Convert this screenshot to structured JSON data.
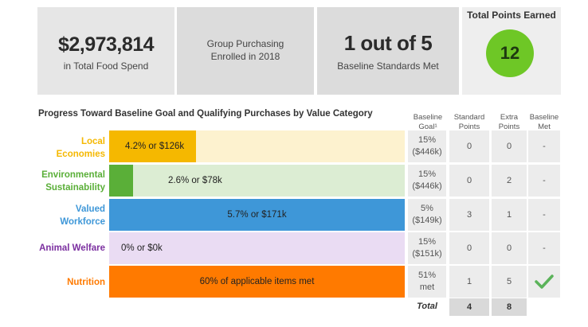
{
  "summary": {
    "food_spend": "$2,973,814",
    "food_spend_label": "in Total Food Spend",
    "group_purchasing": "Group Purchasing\nEnrolled in 2018",
    "standards_met": "1 out of 5",
    "standards_label": "Baseline Standards Met",
    "total_points_title": "Total Points Earned",
    "total_points": "12"
  },
  "section_title": "Progress Toward Baseline Goal and Qualifying Purchases by Value Category",
  "columns": {
    "baseline_goal": "Baseline\nGoal¹",
    "standard_points": "Standard\nPoints",
    "extra_points": "Extra\nPoints",
    "baseline_met": "Baseline\nMet"
  },
  "colors": {
    "local": "#f5b800",
    "local_light": "#fdf2cf",
    "environment": "#5aaf38",
    "environment_light": "#dcedd3",
    "workforce": "#3e97d8",
    "animal": "#7b2fa0",
    "animal_light": "#eadcf3",
    "nutrition": "#ff7a00",
    "check": "#5bb35a"
  },
  "categories": [
    {
      "label": "Local\nEconomies",
      "bar_text": "4.2% or $126k",
      "progress_fraction": 0.042,
      "goal": "15%\n($446k)",
      "standard": "0",
      "extra": "0",
      "met": "-"
    },
    {
      "label": "Environmental\nSustainability",
      "bar_text": "2.6% or $78k",
      "progress_fraction": 0.026,
      "goal": "15%\n($446k)",
      "standard": "0",
      "extra": "2",
      "met": "-"
    },
    {
      "label": "Valued\nWorkforce",
      "bar_text": "5.7% or $171k",
      "progress_fraction": 0.057,
      "goal": "5%\n($149k)",
      "standard": "3",
      "extra": "1",
      "met": "-"
    },
    {
      "label": "Animal Welfare",
      "bar_text": "0% or $0k",
      "progress_fraction": 0.0,
      "goal": "15%\n($151k)",
      "standard": "0",
      "extra": "0",
      "met": "-"
    },
    {
      "label": "Nutrition",
      "bar_text": "60% of applicable items met",
      "progress_fraction": 0.6,
      "goal": "51%\nmet",
      "standard": "1",
      "extra": "5",
      "met": "check-icon"
    }
  ],
  "totals": {
    "label": "Total",
    "standard": "4",
    "extra": "8"
  }
}
